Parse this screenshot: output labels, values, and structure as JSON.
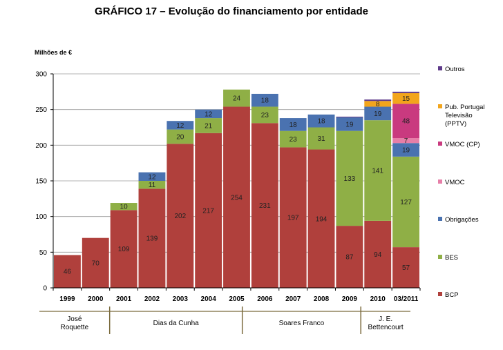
{
  "chart_data": {
    "type": "bar",
    "stacked": true,
    "title": "GRÁFICO 17 – Evolução do financiamento por entidade",
    "ylabel": "Milhões de €",
    "xlabel": "",
    "ylim": [
      0,
      300
    ],
    "yticks": [
      0,
      50,
      100,
      150,
      200,
      250,
      300
    ],
    "grid": true,
    "legend_position": "right",
    "categories": [
      "1999",
      "2000",
      "2001",
      "2002",
      "2003",
      "2004",
      "2005",
      "2006",
      "2007",
      "2008",
      "2009",
      "2010",
      "03/2011"
    ],
    "series": [
      {
        "name": "BCP",
        "color": "#B0403C",
        "values": [
          46,
          70,
          109,
          139,
          202,
          217,
          254,
          231,
          197,
          194,
          87,
          94,
          57
        ],
        "labels": [
          "46",
          "70",
          "109",
          "139",
          "202",
          "217",
          "254",
          "231",
          "197",
          "194",
          "87",
          "94",
          "57"
        ]
      },
      {
        "name": "BES",
        "color": "#8FAF46",
        "values": [
          0,
          0,
          10,
          11,
          20,
          21,
          24,
          23,
          23,
          31,
          133,
          141,
          127
        ],
        "labels": [
          "",
          "",
          "10",
          "11",
          "20",
          "21",
          "24",
          "23",
          "23",
          "31",
          "133",
          "141",
          "127"
        ]
      },
      {
        "name": "Obrigações",
        "color": "#4A72B0",
        "values": [
          0,
          0,
          0,
          12,
          12,
          12,
          0,
          18,
          18,
          18,
          19,
          19,
          19
        ],
        "labels": [
          "",
          "",
          "",
          "12",
          "12",
          "12",
          "",
          "18",
          "18",
          "18",
          "19",
          "19",
          "19"
        ]
      },
      {
        "name": "VMOC",
        "color": "#E67FA8",
        "values": [
          0,
          0,
          0,
          0,
          0,
          0,
          0,
          0,
          0,
          0,
          0,
          0,
          7
        ],
        "labels": [
          "",
          "",
          "",
          "",
          "",
          "",
          "",
          "",
          "",
          "",
          "",
          "",
          "7"
        ]
      },
      {
        "name": "VMOC (CP)",
        "color": "#C93A7F",
        "values": [
          0,
          0,
          0,
          0,
          0,
          0,
          0,
          0,
          0,
          0,
          0,
          0,
          48
        ],
        "labels": [
          "",
          "",
          "",
          "",
          "",
          "",
          "",
          "",
          "",
          "",
          "",
          "",
          "48"
        ]
      },
      {
        "name": "Pub. Portugal Televisão (PPTV)",
        "legend_lines": [
          "Pub. Portugal",
          "Televisão",
          "(PPTV)"
        ],
        "color": "#F2A51C",
        "values": [
          0,
          0,
          0,
          0,
          0,
          0,
          0,
          0,
          0,
          0,
          0,
          8,
          15
        ],
        "labels": [
          "",
          "",
          "",
          "",
          "",
          "",
          "",
          "",
          "",
          "",
          "",
          "8",
          "15"
        ]
      },
      {
        "name": "Outros",
        "color": "#5E3A8A",
        "values": [
          0,
          0,
          0,
          0,
          0,
          0,
          0,
          0,
          0,
          0,
          1,
          2,
          2
        ],
        "labels": [
          "",
          "",
          "",
          "",
          "",
          "",
          "",
          "",
          "",
          "",
          "",
          "",
          ""
        ]
      }
    ],
    "periods": [
      {
        "label_lines": [
          "José",
          "Roquette"
        ],
        "from": 0,
        "to": 1
      },
      {
        "label_lines": [
          "Dias da Cunha"
        ],
        "from": 2,
        "to": 6
      },
      {
        "label_lines": [
          "Soares Franco"
        ],
        "from": 6,
        "to": 10
      },
      {
        "label_lines": [
          "J. E.",
          "Bettencourt"
        ],
        "from": 11,
        "to": 12
      }
    ]
  }
}
